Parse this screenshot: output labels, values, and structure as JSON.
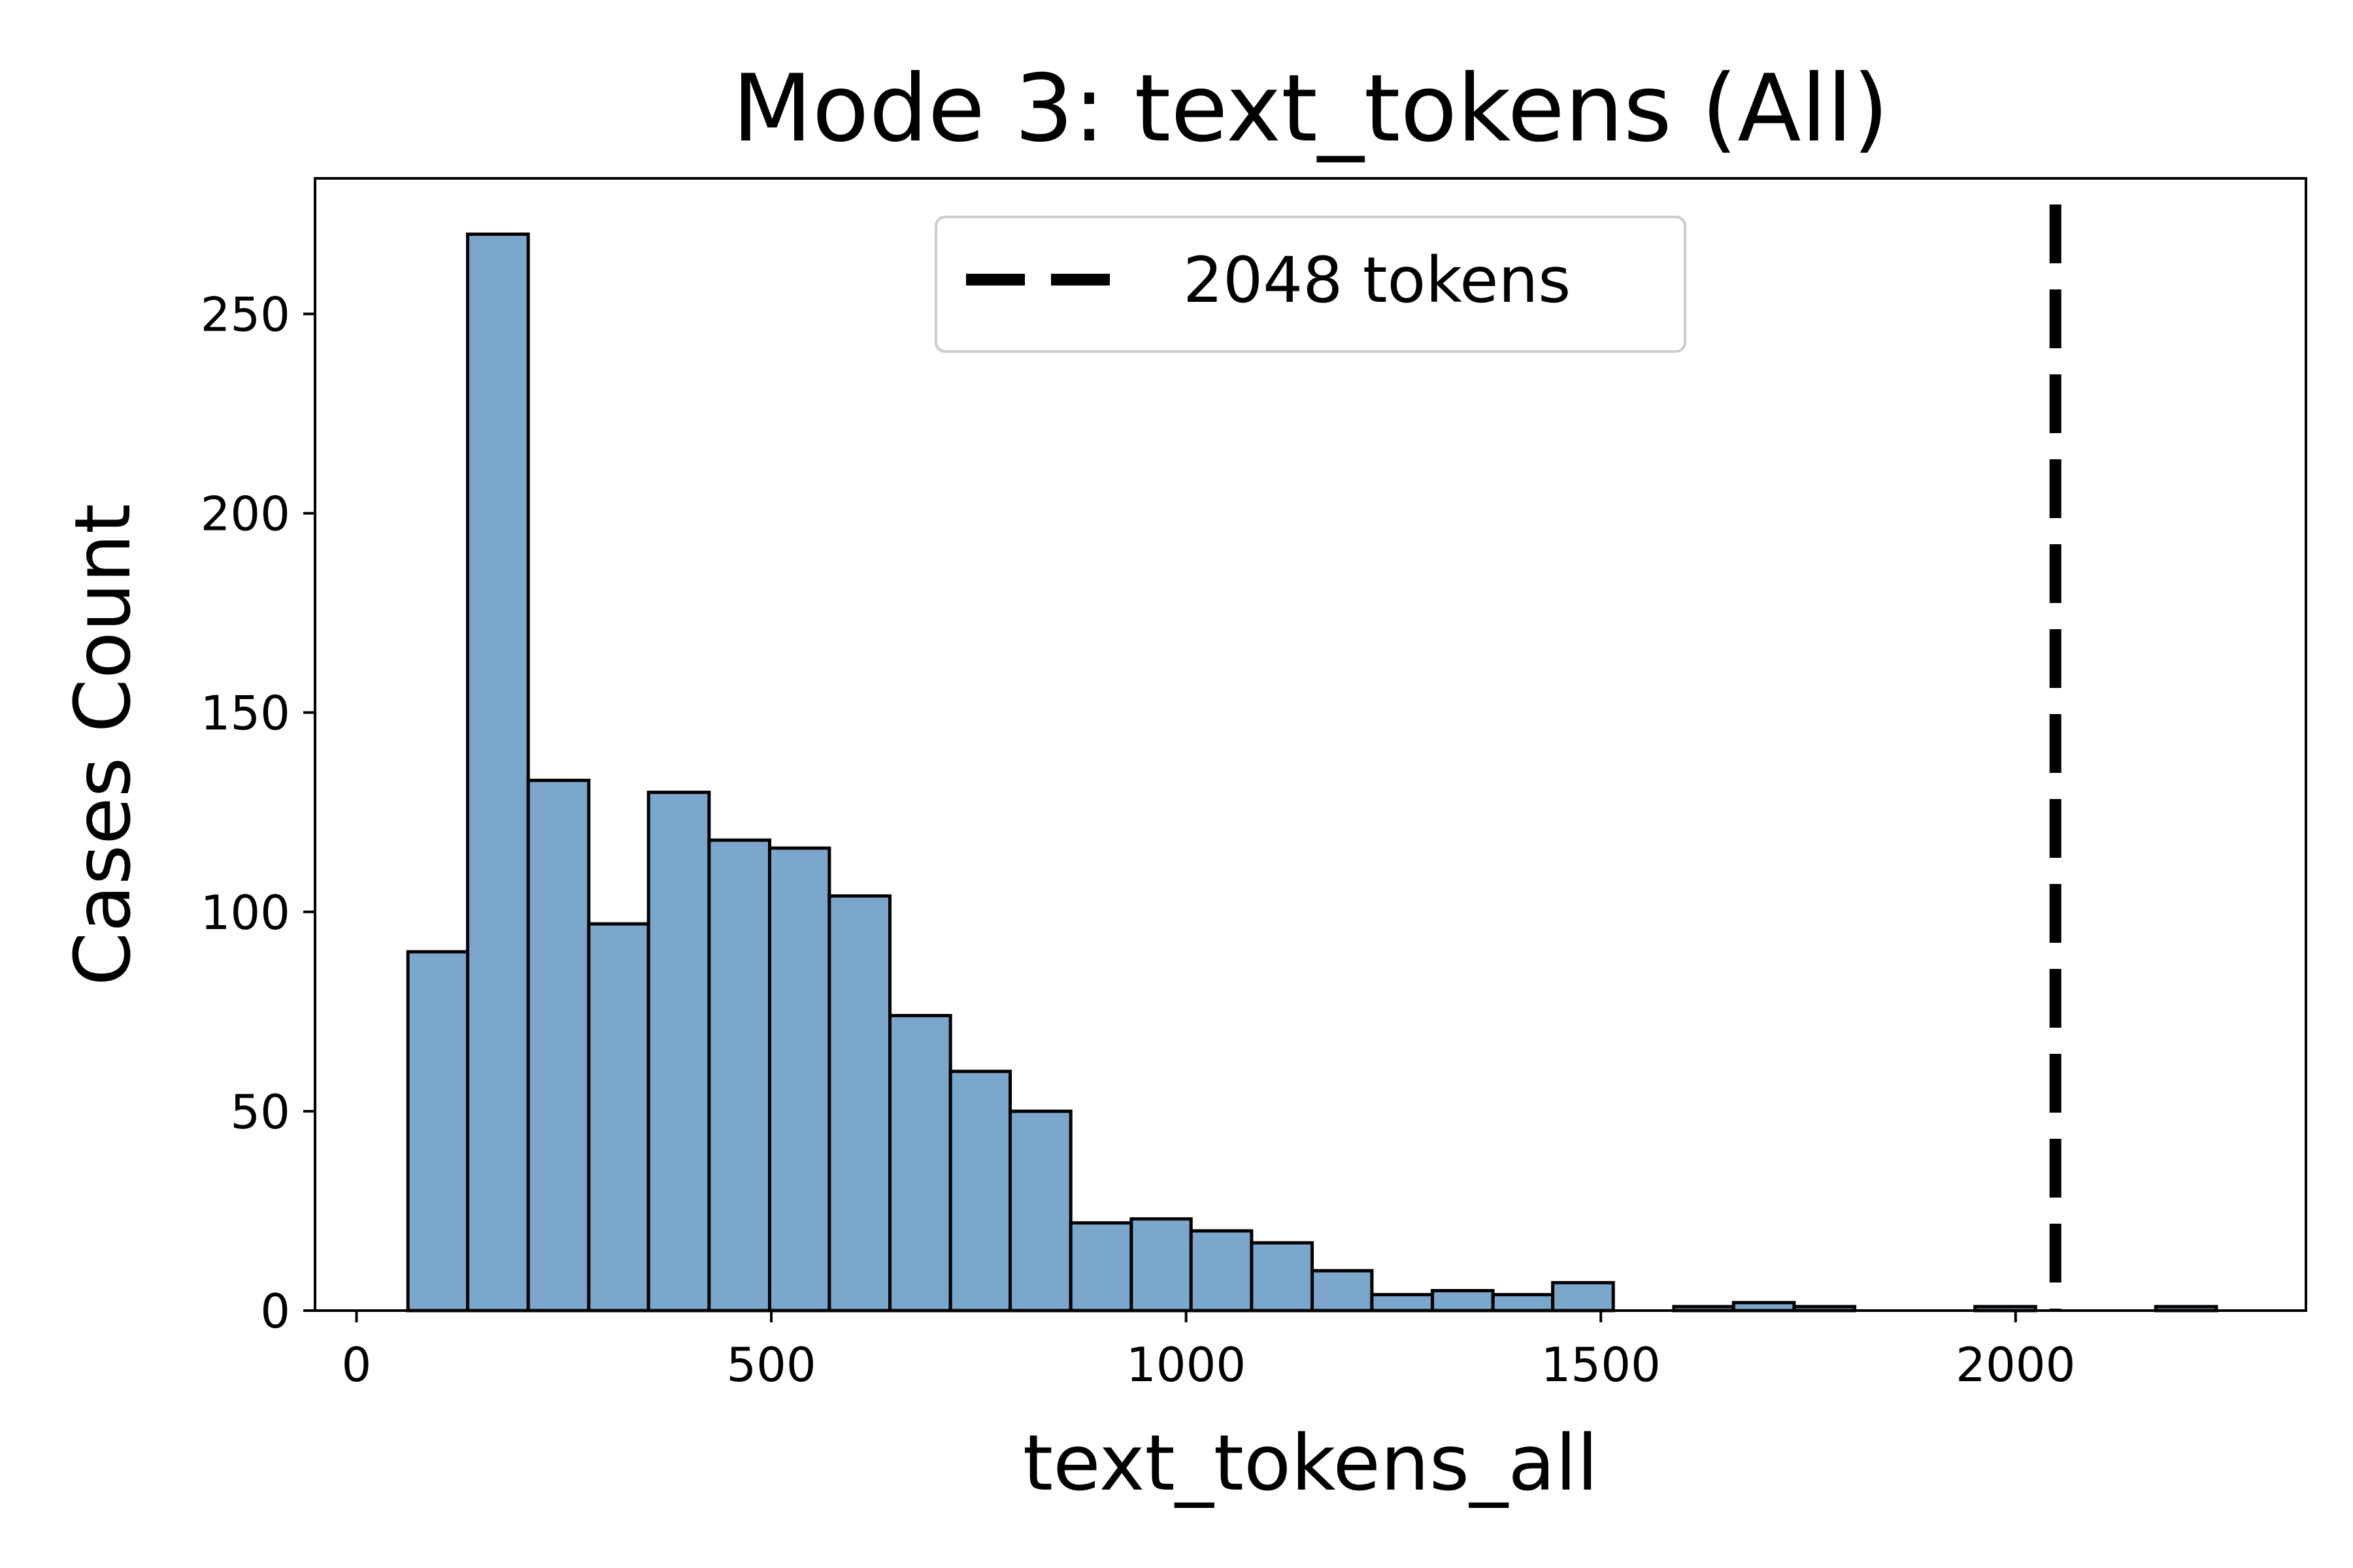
{
  "chart_data": {
    "type": "bar",
    "title": "Mode 3: text_tokens (All)",
    "xlabel": "text_tokens_all",
    "ylabel": "Cases Count",
    "xlim": [
      -50,
      2350
    ],
    "ylim": [
      0,
      284
    ],
    "x_ticks": [
      0,
      500,
      1000,
      1500,
      2000
    ],
    "y_ticks": [
      0,
      50,
      100,
      150,
      200,
      250
    ],
    "bar_color": "#7ba7cc",
    "bar_edge_color": "#000000",
    "bins": [
      {
        "start": 62,
        "end": 134,
        "count": 90
      },
      {
        "start": 134,
        "end": 207,
        "count": 270
      },
      {
        "start": 207,
        "end": 280,
        "count": 133
      },
      {
        "start": 280,
        "end": 352,
        "count": 97
      },
      {
        "start": 352,
        "end": 425,
        "count": 130
      },
      {
        "start": 425,
        "end": 498,
        "count": 118
      },
      {
        "start": 498,
        "end": 570,
        "count": 116
      },
      {
        "start": 570,
        "end": 643,
        "count": 104
      },
      {
        "start": 643,
        "end": 716,
        "count": 74
      },
      {
        "start": 716,
        "end": 788,
        "count": 60
      },
      {
        "start": 788,
        "end": 861,
        "count": 50
      },
      {
        "start": 861,
        "end": 934,
        "count": 22
      },
      {
        "start": 934,
        "end": 1006,
        "count": 23
      },
      {
        "start": 1006,
        "end": 1079,
        "count": 20
      },
      {
        "start": 1079,
        "end": 1152,
        "count": 17
      },
      {
        "start": 1152,
        "end": 1224,
        "count": 10
      },
      {
        "start": 1224,
        "end": 1297,
        "count": 4
      },
      {
        "start": 1297,
        "end": 1370,
        "count": 5
      },
      {
        "start": 1370,
        "end": 1442,
        "count": 4
      },
      {
        "start": 1442,
        "end": 1515,
        "count": 7
      },
      {
        "start": 1515,
        "end": 1588,
        "count": 0
      },
      {
        "start": 1588,
        "end": 1660,
        "count": 1
      },
      {
        "start": 1660,
        "end": 1733,
        "count": 2
      },
      {
        "start": 1733,
        "end": 1806,
        "count": 1
      },
      {
        "start": 1806,
        "end": 1878,
        "count": 0
      },
      {
        "start": 1878,
        "end": 1951,
        "count": 0
      },
      {
        "start": 1951,
        "end": 2024,
        "count": 1
      },
      {
        "start": 2024,
        "end": 2096,
        "count": 0
      },
      {
        "start": 2096,
        "end": 2169,
        "count": 0
      },
      {
        "start": 2169,
        "end": 2242,
        "count": 1
      }
    ],
    "reference_line": {
      "x": 2048,
      "label": "2048 tokens",
      "style": "dashed",
      "color": "#000000"
    },
    "legend": {
      "placement": "top-center"
    },
    "grid": false
  }
}
